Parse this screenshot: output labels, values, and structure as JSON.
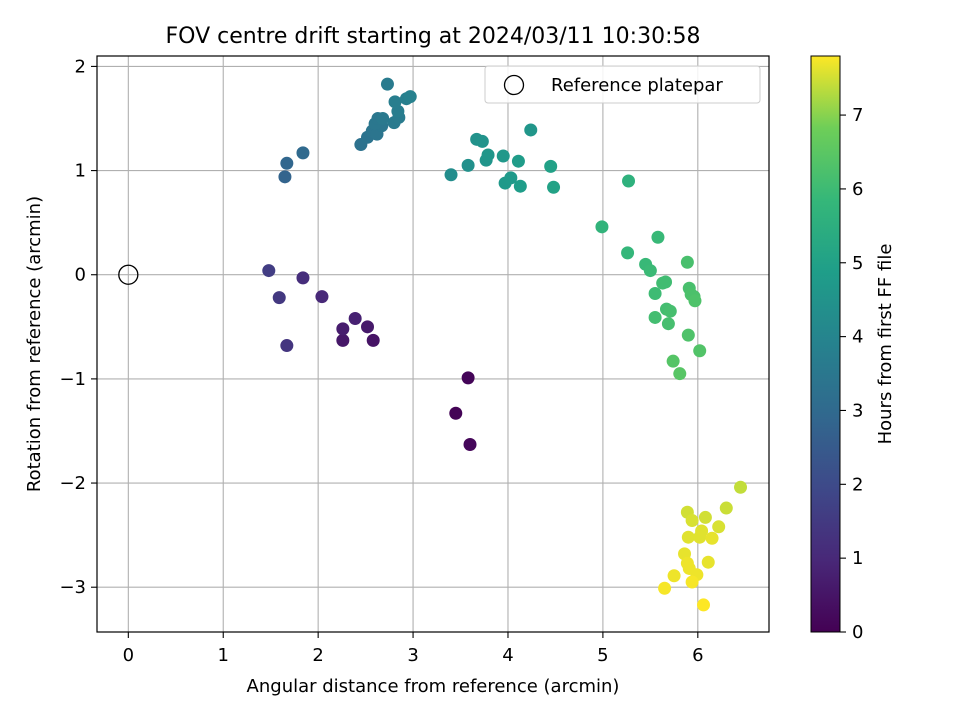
{
  "chart_data": {
    "type": "scatter",
    "title": "FOV centre drift starting at 2024/03/11 10:30:58",
    "xlabel": "Angular distance from reference (arcmin)",
    "ylabel": "Rotation from reference (arcmin)",
    "colorbar_label": "Hours from first FF file",
    "xlim": [
      -0.33,
      6.75
    ],
    "ylim": [
      -3.43,
      2.1
    ],
    "x_ticks": [
      0,
      1,
      2,
      3,
      4,
      5,
      6
    ],
    "y_ticks": [
      -3,
      -2,
      -1,
      0,
      1,
      2
    ],
    "colorbar_ticks": [
      0,
      1,
      2,
      3,
      4,
      5,
      6,
      7
    ],
    "colorbar_range": [
      0,
      7.8
    ],
    "colormap": "viridis",
    "grid": true,
    "legend": {
      "position": "top-right",
      "label": "Reference platepar"
    },
    "reference_point": {
      "x": 0,
      "y": 0
    },
    "points": [
      {
        "x": 3.45,
        "y": -1.33,
        "c": 0.05
      },
      {
        "x": 3.58,
        "y": -0.99,
        "c": 0.1
      },
      {
        "x": 3.6,
        "y": -1.63,
        "c": 0.15
      },
      {
        "x": 2.58,
        "y": -0.63,
        "c": 0.45
      },
      {
        "x": 2.26,
        "y": -0.63,
        "c": 0.55
      },
      {
        "x": 2.52,
        "y": -0.5,
        "c": 0.6
      },
      {
        "x": 2.26,
        "y": -0.52,
        "c": 0.7
      },
      {
        "x": 2.39,
        "y": -0.42,
        "c": 0.8
      },
      {
        "x": 2.04,
        "y": -0.21,
        "c": 1.0
      },
      {
        "x": 1.84,
        "y": -0.03,
        "c": 1.15
      },
      {
        "x": 1.67,
        "y": -0.68,
        "c": 1.35
      },
      {
        "x": 1.59,
        "y": -0.22,
        "c": 1.45
      },
      {
        "x": 1.48,
        "y": 0.04,
        "c": 1.6
      },
      {
        "x": 1.65,
        "y": 0.94,
        "c": 2.8
      },
      {
        "x": 1.67,
        "y": 1.07,
        "c": 2.9
      },
      {
        "x": 1.84,
        "y": 1.17,
        "c": 3.0
      },
      {
        "x": 2.45,
        "y": 1.25,
        "c": 3.3
      },
      {
        "x": 2.52,
        "y": 1.32,
        "c": 3.35
      },
      {
        "x": 2.57,
        "y": 1.38,
        "c": 3.4
      },
      {
        "x": 2.62,
        "y": 1.35,
        "c": 3.4
      },
      {
        "x": 2.67,
        "y": 1.43,
        "c": 3.45
      },
      {
        "x": 2.6,
        "y": 1.45,
        "c": 3.5
      },
      {
        "x": 2.63,
        "y": 1.5,
        "c": 3.5
      },
      {
        "x": 2.68,
        "y": 1.5,
        "c": 3.55
      },
      {
        "x": 2.8,
        "y": 1.46,
        "c": 3.6
      },
      {
        "x": 2.85,
        "y": 1.51,
        "c": 3.65
      },
      {
        "x": 2.84,
        "y": 1.57,
        "c": 3.7
      },
      {
        "x": 2.81,
        "y": 1.66,
        "c": 3.75
      },
      {
        "x": 2.93,
        "y": 1.69,
        "c": 3.8
      },
      {
        "x": 2.97,
        "y": 1.71,
        "c": 3.85
      },
      {
        "x": 2.73,
        "y": 1.83,
        "c": 3.65
      },
      {
        "x": 3.4,
        "y": 0.96,
        "c": 4.3
      },
      {
        "x": 3.58,
        "y": 1.05,
        "c": 4.4
      },
      {
        "x": 3.67,
        "y": 1.3,
        "c": 4.45
      },
      {
        "x": 3.73,
        "y": 1.28,
        "c": 4.5
      },
      {
        "x": 3.77,
        "y": 1.1,
        "c": 4.55
      },
      {
        "x": 3.79,
        "y": 1.15,
        "c": 4.6
      },
      {
        "x": 3.95,
        "y": 1.14,
        "c": 4.65
      },
      {
        "x": 3.97,
        "y": 0.88,
        "c": 4.7
      },
      {
        "x": 4.03,
        "y": 0.93,
        "c": 4.75
      },
      {
        "x": 4.11,
        "y": 1.09,
        "c": 4.8
      },
      {
        "x": 4.13,
        "y": 0.85,
        "c": 4.85
      },
      {
        "x": 4.24,
        "y": 1.39,
        "c": 4.6
      },
      {
        "x": 4.45,
        "y": 1.04,
        "c": 5.0
      },
      {
        "x": 4.48,
        "y": 0.84,
        "c": 5.05
      },
      {
        "x": 5.27,
        "y": 0.9,
        "c": 5.6
      },
      {
        "x": 4.99,
        "y": 0.46,
        "c": 5.7
      },
      {
        "x": 5.26,
        "y": 0.21,
        "c": 5.8
      },
      {
        "x": 5.45,
        "y": 0.1,
        "c": 5.9
      },
      {
        "x": 5.5,
        "y": 0.04,
        "c": 5.95
      },
      {
        "x": 5.58,
        "y": 0.36,
        "c": 5.9
      },
      {
        "x": 5.55,
        "y": -0.18,
        "c": 6.0
      },
      {
        "x": 5.63,
        "y": -0.08,
        "c": 6.05
      },
      {
        "x": 5.66,
        "y": -0.07,
        "c": 6.05
      },
      {
        "x": 5.55,
        "y": -0.41,
        "c": 6.1
      },
      {
        "x": 5.67,
        "y": -0.33,
        "c": 6.1
      },
      {
        "x": 5.71,
        "y": -0.35,
        "c": 6.15
      },
      {
        "x": 5.69,
        "y": -0.47,
        "c": 6.15
      },
      {
        "x": 5.89,
        "y": 0.12,
        "c": 6.2
      },
      {
        "x": 5.91,
        "y": -0.13,
        "c": 6.2
      },
      {
        "x": 5.93,
        "y": -0.19,
        "c": 6.25
      },
      {
        "x": 5.96,
        "y": -0.21,
        "c": 6.25
      },
      {
        "x": 5.97,
        "y": -0.25,
        "c": 6.3
      },
      {
        "x": 5.9,
        "y": -0.58,
        "c": 6.3
      },
      {
        "x": 6.02,
        "y": -0.73,
        "c": 6.35
      },
      {
        "x": 5.74,
        "y": -0.83,
        "c": 6.4
      },
      {
        "x": 5.81,
        "y": -0.95,
        "c": 6.45
      },
      {
        "x": 6.45,
        "y": -2.04,
        "c": 7.4
      },
      {
        "x": 6.3,
        "y": -2.24,
        "c": 7.45
      },
      {
        "x": 5.89,
        "y": -2.28,
        "c": 7.5
      },
      {
        "x": 6.08,
        "y": -2.33,
        "c": 7.5
      },
      {
        "x": 5.94,
        "y": -2.36,
        "c": 7.55
      },
      {
        "x": 6.22,
        "y": -2.42,
        "c": 7.55
      },
      {
        "x": 6.04,
        "y": -2.46,
        "c": 7.6
      },
      {
        "x": 5.9,
        "y": -2.52,
        "c": 7.6
      },
      {
        "x": 6.02,
        "y": -2.52,
        "c": 7.6
      },
      {
        "x": 6.15,
        "y": -2.53,
        "c": 7.65
      },
      {
        "x": 5.86,
        "y": -2.68,
        "c": 7.65
      },
      {
        "x": 6.11,
        "y": -2.76,
        "c": 7.65
      },
      {
        "x": 5.89,
        "y": -2.77,
        "c": 7.7
      },
      {
        "x": 5.91,
        "y": -2.82,
        "c": 7.7
      },
      {
        "x": 5.99,
        "y": -2.88,
        "c": 7.7
      },
      {
        "x": 5.75,
        "y": -2.89,
        "c": 7.7
      },
      {
        "x": 5.94,
        "y": -2.95,
        "c": 7.75
      },
      {
        "x": 5.65,
        "y": -3.01,
        "c": 7.75
      },
      {
        "x": 6.06,
        "y": -3.17,
        "c": 7.8
      }
    ]
  }
}
